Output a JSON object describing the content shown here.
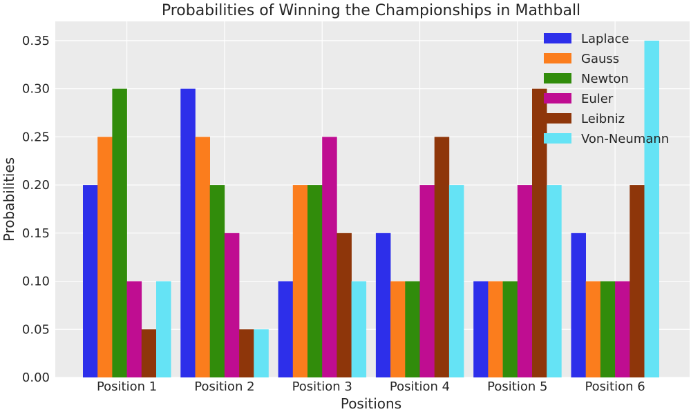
{
  "chart_data": {
    "type": "bar",
    "title": "Probabilities of Winning the Championships in Mathball",
    "xlabel": "Positions",
    "ylabel": "Probabilities",
    "categories": [
      "Position 1",
      "Position 2",
      "Position 3",
      "Position 4",
      "Position 5",
      "Position 6"
    ],
    "ylim": [
      0,
      0.37
    ],
    "yticks": [
      "0.00",
      "0.05",
      "0.10",
      "0.15",
      "0.20",
      "0.25",
      "0.30",
      "0.35"
    ],
    "grid": true,
    "legend_position": "top-right",
    "series": [
      {
        "name": "Laplace",
        "color": "#2d2fea",
        "values": [
          0.2,
          0.3,
          0.1,
          0.15,
          0.1,
          0.15
        ]
      },
      {
        "name": "Gauss",
        "color": "#fb7d1d",
        "values": [
          0.25,
          0.25,
          0.2,
          0.1,
          0.1,
          0.1
        ]
      },
      {
        "name": "Newton",
        "color": "#318c0b",
        "values": [
          0.3,
          0.2,
          0.2,
          0.1,
          0.1,
          0.1
        ]
      },
      {
        "name": "Euler",
        "color": "#bf0d91",
        "values": [
          0.1,
          0.15,
          0.25,
          0.2,
          0.2,
          0.1
        ]
      },
      {
        "name": "Leibniz",
        "color": "#8e360a",
        "values": [
          0.05,
          0.05,
          0.15,
          0.25,
          0.3,
          0.2
        ]
      },
      {
        "name": "Von-Neumann",
        "color": "#65e3f5",
        "values": [
          0.1,
          0.05,
          0.1,
          0.2,
          0.2,
          0.35
        ]
      }
    ]
  }
}
